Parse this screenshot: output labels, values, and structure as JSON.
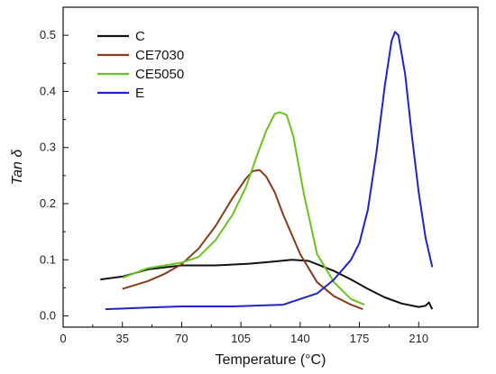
{
  "chart_data": {
    "type": "line",
    "xlabel": "Temperature (°C)",
    "ylabel": "Tan δ",
    "xlim": [
      0,
      245
    ],
    "ylim": [
      -0.02,
      0.55
    ],
    "xticks": [
      0,
      35,
      70,
      105,
      140,
      175,
      210
    ],
    "yticks": [
      0.0,
      0.1,
      0.2,
      0.3,
      0.4,
      0.5
    ],
    "grid": false,
    "legend_position": "top-left",
    "series": [
      {
        "name": "C",
        "color": "#111111",
        "x": [
          22,
          35,
          50,
          70,
          90,
          110,
          125,
          135,
          145,
          150,
          160,
          170,
          180,
          190,
          200,
          210,
          214,
          216,
          218
        ],
        "y": [
          0.065,
          0.07,
          0.083,
          0.09,
          0.09,
          0.093,
          0.097,
          0.1,
          0.098,
          0.092,
          0.08,
          0.065,
          0.048,
          0.033,
          0.022,
          0.016,
          0.018,
          0.024,
          0.012
        ]
      },
      {
        "name": "CE7030",
        "color": "#8b3a1a",
        "x": [
          35,
          50,
          60,
          70,
          80,
          90,
          100,
          108,
          112,
          116,
          120,
          125,
          130,
          140,
          150,
          160,
          170,
          177
        ],
        "y": [
          0.048,
          0.062,
          0.075,
          0.092,
          0.12,
          0.16,
          0.21,
          0.245,
          0.258,
          0.26,
          0.248,
          0.22,
          0.18,
          0.11,
          0.06,
          0.035,
          0.02,
          0.012
        ]
      },
      {
        "name": "CE5050",
        "color": "#6cc21d",
        "x": [
          35,
          50,
          70,
          80,
          90,
          100,
          108,
          115,
          120,
          125,
          128,
          132,
          136,
          142,
          150,
          160,
          170,
          178
        ],
        "y": [
          0.068,
          0.085,
          0.095,
          0.105,
          0.135,
          0.18,
          0.23,
          0.29,
          0.33,
          0.36,
          0.363,
          0.358,
          0.32,
          0.22,
          0.11,
          0.06,
          0.03,
          0.02
        ]
      },
      {
        "name": "E",
        "color": "#2222cc",
        "x": [
          25,
          50,
          70,
          100,
          130,
          150,
          160,
          170,
          175,
          180,
          185,
          190,
          194,
          196,
          198,
          202,
          206,
          210,
          214,
          218
        ],
        "y": [
          0.012,
          0.015,
          0.017,
          0.017,
          0.02,
          0.04,
          0.065,
          0.1,
          0.13,
          0.19,
          0.29,
          0.41,
          0.49,
          0.506,
          0.5,
          0.43,
          0.32,
          0.22,
          0.14,
          0.087
        ]
      }
    ]
  }
}
